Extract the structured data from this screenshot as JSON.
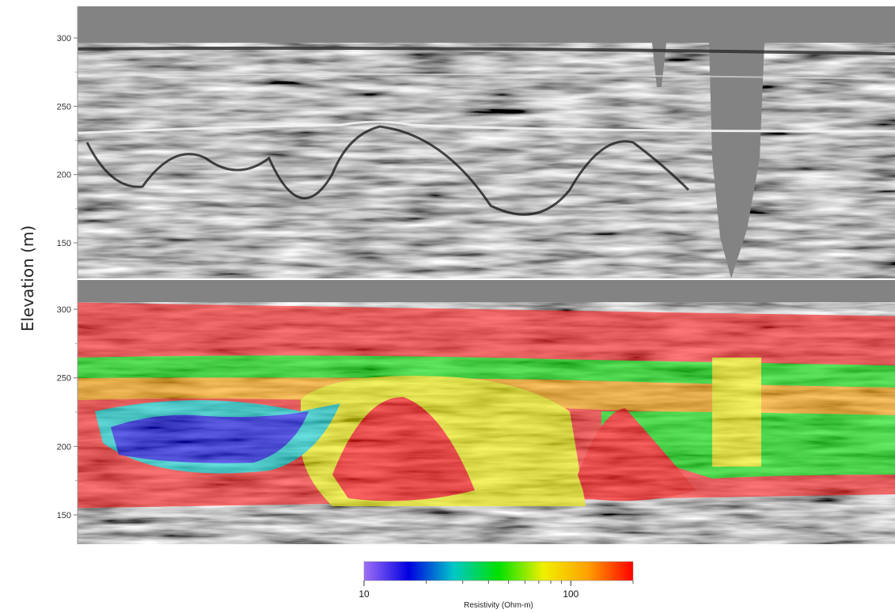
{
  "chart_data": {
    "type": "heatmap",
    "ylabel": "Elevation (m)",
    "panels": [
      {
        "name": "seismic",
        "ylim": [
          125,
          310
        ],
        "yticks": [
          300,
          250,
          200,
          150
        ],
        "ytick_labels": [
          "300",
          "250",
          "200",
          "150"
        ],
        "no_data_color": "#838383"
      },
      {
        "name": "resistivity-overlay",
        "ylim": [
          125,
          310
        ],
        "yticks": [
          300,
          250,
          200,
          150
        ],
        "ytick_labels": [
          "300",
          "250",
          "200",
          "150"
        ],
        "model_top_elevation": [
          305,
          295
        ],
        "model_bottom_elevation": [
          155,
          165
        ]
      }
    ],
    "colorbar": {
      "label": "Resistivity (Ohm-m)",
      "scale": "log",
      "range": [
        10,
        200
      ],
      "ticks": [
        10,
        100
      ],
      "tick_labels": [
        "10",
        "100"
      ],
      "colors": [
        "#a070f8",
        "#0000e0",
        "#00c8c8",
        "#00e000",
        "#f0f000",
        "#ffa000",
        "#ff0000"
      ]
    }
  }
}
